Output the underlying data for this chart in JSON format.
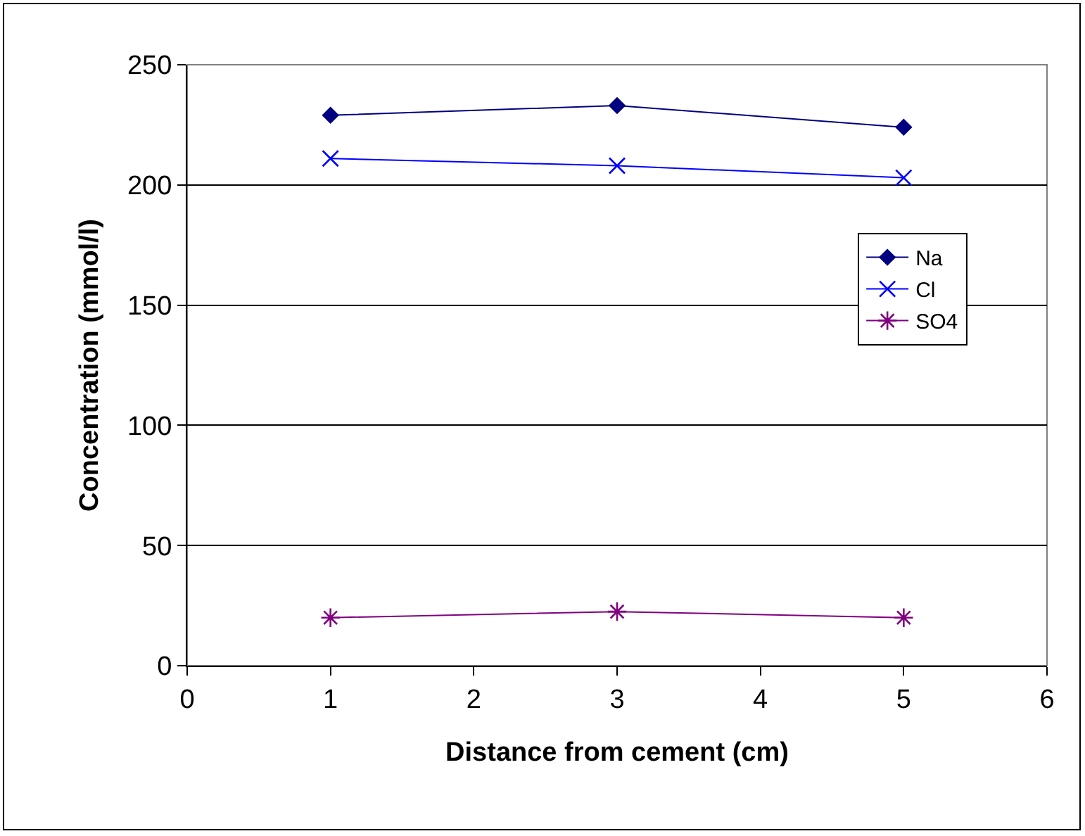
{
  "chart_data": {
    "type": "line",
    "xlabel": "Distance from cement (cm)",
    "ylabel": "Concentration (mmol/l)",
    "x": [
      1,
      3,
      5
    ],
    "xlim": [
      0,
      6
    ],
    "xticks": [
      0,
      1,
      2,
      3,
      4,
      5,
      6
    ],
    "ylim": [
      0,
      250
    ],
    "yticks": [
      0,
      50,
      100,
      150,
      200,
      250
    ],
    "grid": "y",
    "legend": "right",
    "line_style": "solid",
    "series": [
      {
        "name": "Na",
        "color": "#000080",
        "marker": "diamond",
        "values": [
          229,
          233,
          224
        ]
      },
      {
        "name": "Cl",
        "color": "#0000ff",
        "marker": "cross",
        "values": [
          211,
          208,
          203
        ]
      },
      {
        "name": "SO4",
        "color": "#800080",
        "marker": "cross",
        "values": [
          20,
          22.5,
          20
        ]
      }
    ]
  }
}
